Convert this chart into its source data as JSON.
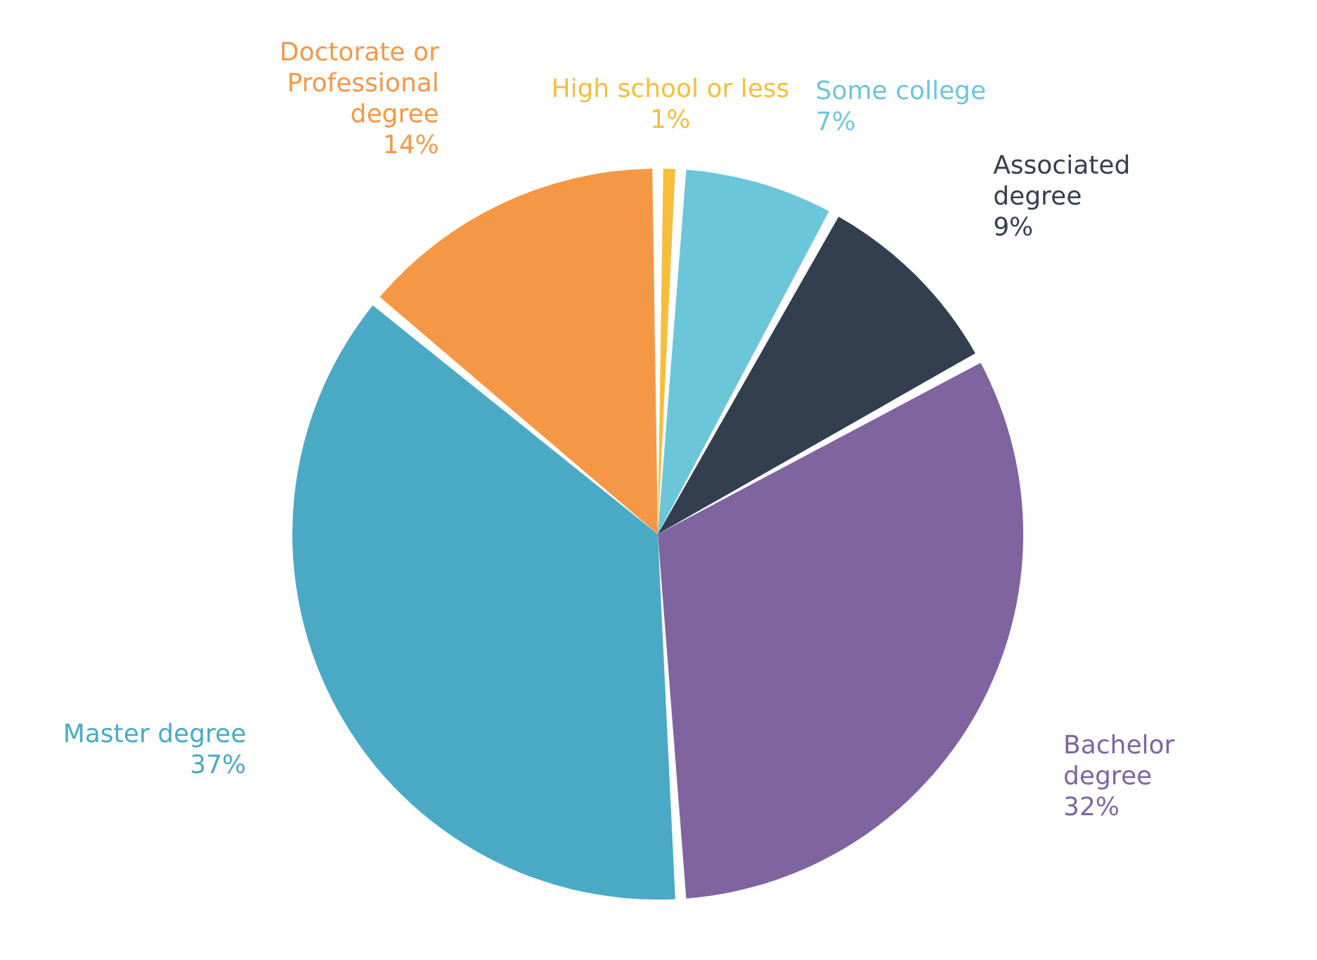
{
  "chart_data": {
    "type": "pie",
    "categories": [
      "High school or less",
      "Some college",
      "Associated\ndegree",
      "Bachelor\ndegree",
      "Master degree",
      "Doctorate or\nProfessional\ndegree"
    ],
    "values": [
      1,
      7,
      9,
      32,
      37,
      14
    ],
    "colors": [
      "#f6be3b",
      "#6cc6da",
      "#333f4f",
      "#7f64a0",
      "#4aaac6",
      "#f59846"
    ],
    "value_labels": [
      "1%",
      "7%",
      "9%",
      "32%",
      "37%",
      "14%"
    ]
  }
}
